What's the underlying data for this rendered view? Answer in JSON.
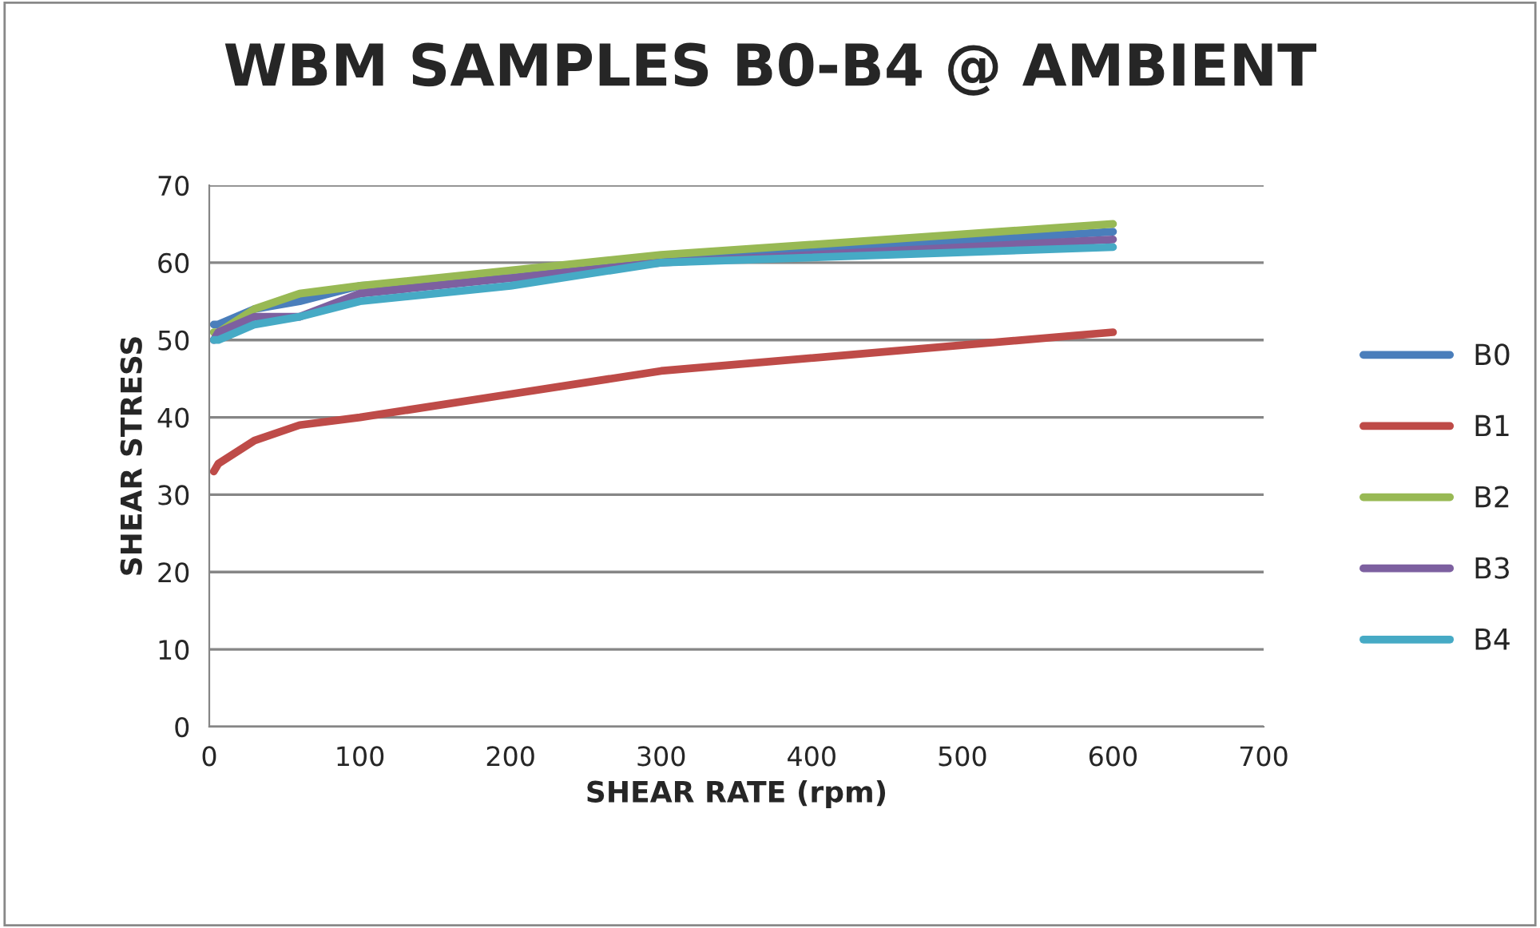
{
  "chart_data": {
    "type": "line",
    "title": "WBM SAMPLES B0-B4 @ AMBIENT",
    "xlabel": "SHEAR RATE (rpm)",
    "ylabel": "SHEAR STRESS",
    "x": [
      3,
      6,
      30,
      60,
      100,
      200,
      300,
      600
    ],
    "series": [
      {
        "name": "B0",
        "color": "#4a7ebb",
        "values": [
          52,
          52,
          54,
          55,
          57,
          58,
          60.5,
          64
        ]
      },
      {
        "name": "B1",
        "color": "#be4b48",
        "values": [
          33,
          34,
          37,
          39,
          40,
          43,
          46,
          51
        ]
      },
      {
        "name": "B2",
        "color": "#98b954",
        "values": [
          51,
          51,
          54,
          56,
          57,
          59,
          61,
          65
        ]
      },
      {
        "name": "B3",
        "color": "#7d60a0",
        "values": [
          50,
          51,
          53,
          53,
          56,
          58,
          60,
          63
        ]
      },
      {
        "name": "B4",
        "color": "#46aac5",
        "values": [
          50,
          50,
          52,
          53,
          55,
          57,
          60,
          62
        ]
      }
    ],
    "xlim": [
      0,
      700
    ],
    "xticks": [
      0,
      100,
      200,
      300,
      400,
      500,
      600,
      700
    ],
    "ylim": [
      0,
      70
    ],
    "yticks": [
      0,
      10,
      20,
      30,
      40,
      50,
      60,
      70
    ],
    "grid": "y",
    "legend": "right",
    "marker": "none",
    "line_style": "solid"
  }
}
